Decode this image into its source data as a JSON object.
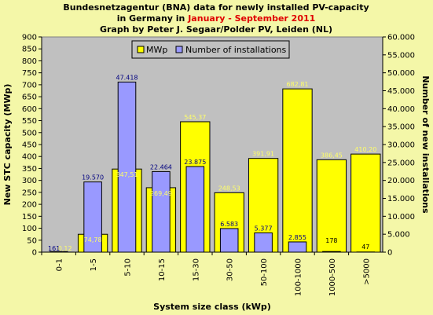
{
  "title": {
    "line1": "Bundesnetzagentur (BNA) data for newly installed PV-capacity",
    "line2_prefix": "in Germany in ",
    "line2_highlight": "January - September 2011",
    "line3": "Graph by Peter J. Segaar/Polder PV, Leiden (NL)"
  },
  "colors": {
    "background": "#f4f7a8",
    "plot_area": "#c0c0c0",
    "mwp_bar": "#ffff00",
    "inst_bar": "#9999ff",
    "highlight_text": "#e00000",
    "inst_label": "#000080",
    "mwp_label": "#ffff66"
  },
  "chart_data": {
    "type": "bar",
    "title": "Bundesnetzagentur (BNA) data for newly installed PV-capacity in Germany in January - September 2011",
    "xlabel": "System size class (kWp)",
    "ylabel": "New STC capacity (MWp)",
    "y2label": "Number of new installations",
    "categories": [
      "0-1",
      "1-5",
      "5-10",
      "10-15",
      "15-30",
      "30-50",
      "50-100",
      "100-1000",
      "1000-500",
      ">5000"
    ],
    "ylim": [
      0,
      900
    ],
    "y2lim": [
      0,
      60000
    ],
    "yticks": [
      "0",
      "50",
      "100",
      "150",
      "200",
      "250",
      "300",
      "350",
      "400",
      "450",
      "500",
      "550",
      "600",
      "650",
      "700",
      "750",
      "800",
      "850",
      "900"
    ],
    "y2ticks": [
      "0",
      "5.000",
      "10.000",
      "15.000",
      "20.000",
      "25.000",
      "30.000",
      "35.000",
      "40.000",
      "45.000",
      "50.000",
      "55.000",
      "60.000"
    ],
    "legend_position": "top-left",
    "grid": false,
    "series": [
      {
        "name": "MWp",
        "axis": "left",
        "values": [
          0.12,
          74.78,
          347.51,
          269.49,
          545.37,
          248.53,
          391.91,
          682.81,
          386.45,
          410.2
        ],
        "labels": [
          "0,12",
          "74,78",
          "347,51",
          "269,49",
          "545,37",
          "248,53",
          "391,91",
          "682,81",
          "386,45",
          "410,20"
        ]
      },
      {
        "name": "Number of installations",
        "axis": "right",
        "values": [
          161,
          19570,
          47418,
          22464,
          23875,
          6583,
          5377,
          2855,
          178,
          47
        ],
        "labels": [
          "161",
          "19.570",
          "47.418",
          "22.464",
          "23.875",
          "6.583",
          "5.377",
          "2.855",
          "178",
          "47"
        ]
      }
    ]
  }
}
